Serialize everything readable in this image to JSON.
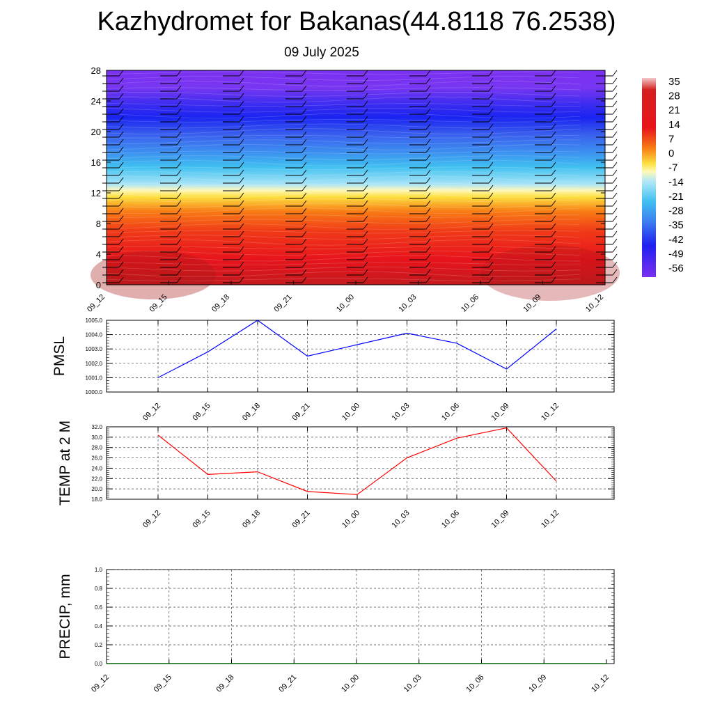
{
  "title": "Kazhydromet for Bakanas(44.8118 76.2538)",
  "subtitle": "09 July 2025",
  "chart_data": [
    {
      "type": "heatmap",
      "y_ticks": [
        "0",
        "4",
        "8",
        "12",
        "16",
        "20",
        "24",
        "28"
      ],
      "x_ticks": [
        "09_12",
        "09_15",
        "09_18",
        "09_21",
        "10_00",
        "10_03",
        "10_06",
        "10_09",
        "10_12"
      ],
      "ylim": [
        0,
        28
      ],
      "colorbar_labels": [
        "35",
        "28",
        "21",
        "14",
        "7",
        "0",
        "-7",
        "-14",
        "-21",
        "-28",
        "-35",
        "-42",
        "-49",
        "-56"
      ],
      "colorbar_range": [
        -63,
        42
      ],
      "colors": {
        "warm": "#e8141c",
        "hot": "#b8181d",
        "yellow": "#fff7a0",
        "cyan": "#46c8f0",
        "blue": "#2030e8",
        "violet": "#7830f0"
      }
    },
    {
      "type": "line",
      "ylabel": "PMSL",
      "x_ticks": [
        "09_12",
        "09_15",
        "09_18",
        "09_21",
        "10_00",
        "10_03",
        "10_06",
        "10_09",
        "10_12"
      ],
      "y_ticks": [
        "1000.0",
        "1001.0",
        "1002.0",
        "1003.0",
        "1004.0",
        "1005.0"
      ],
      "ylim": [
        1000.0,
        1005.0
      ],
      "series": [
        {
          "values": [
            1001.0,
            1002.8,
            1005.0,
            1002.5,
            1003.3,
            1004.1,
            1003.4,
            1001.6,
            1004.4
          ]
        }
      ],
      "color": "#0000ff",
      "grid": true
    },
    {
      "type": "line",
      "ylabel": "TEMP at 2 M",
      "x_ticks": [
        "09_12",
        "09_15",
        "09_18",
        "09_21",
        "10_00",
        "10_03",
        "10_06",
        "10_09",
        "10_12"
      ],
      "y_ticks": [
        "18.0",
        "20.0",
        "22.0",
        "24.0",
        "26.0",
        "28.0",
        "30.0",
        "32.0"
      ],
      "ylim": [
        18.0,
        32.0
      ],
      "series": [
        {
          "values": [
            30.4,
            22.8,
            23.3,
            19.5,
            18.9,
            26.0,
            29.8,
            31.8,
            21.5
          ]
        }
      ],
      "color": "#ff0000",
      "grid": true
    },
    {
      "type": "line",
      "ylabel": "PRECIP, mm",
      "x_ticks": [
        "09_12",
        "09_15",
        "09_18",
        "09_21",
        "10_00",
        "10_03",
        "10_06",
        "10_09",
        "10_12"
      ],
      "y_ticks": [
        "0.0",
        "0.2",
        "0.4",
        "0.6",
        "0.8",
        "1.0"
      ],
      "ylim": [
        0.0,
        1.0
      ],
      "series": [
        {
          "values": [
            0,
            0,
            0,
            0,
            0,
            0,
            0,
            0,
            0
          ]
        }
      ],
      "color": "#006400",
      "grid": true
    }
  ]
}
